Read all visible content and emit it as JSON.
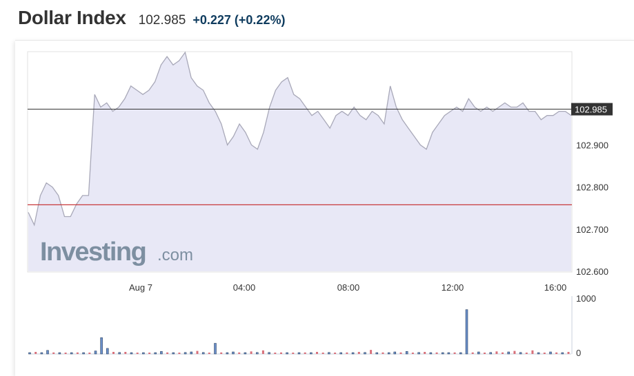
{
  "header": {
    "title": "Dollar Index",
    "price": "102.985",
    "change": "+0.227 (+0.22%)"
  },
  "watermark": {
    "main": "Investing",
    "suffix": ".com"
  },
  "colors": {
    "area_fill": "#e8e8f6",
    "line": "#a8a8b8",
    "current_line": "#333333",
    "prev_close_line": "#c8383a",
    "vol_up": "#6a8ec8",
    "vol_down": "#d8707a"
  },
  "chart_data": [
    {
      "type": "area",
      "x_ticks": [
        "Aug 7",
        "04:00",
        "08:00",
        "12:00",
        "16:00"
      ],
      "y_ticks": [
        "102.900",
        "102.800",
        "102.700",
        "102.600"
      ],
      "ylim": [
        102.6,
        103.12
      ],
      "current_value": 102.985,
      "current_label": "102.985",
      "previous_close": 102.758,
      "values": [
        102.74,
        102.71,
        102.78,
        102.81,
        102.8,
        102.78,
        102.73,
        102.73,
        102.76,
        102.78,
        102.78,
        103.02,
        102.99,
        103.0,
        102.98,
        102.99,
        103.01,
        103.04,
        103.03,
        103.02,
        103.03,
        103.05,
        103.09,
        103.11,
        103.09,
        103.1,
        103.12,
        103.06,
        103.04,
        103.03,
        103.0,
        102.98,
        102.95,
        102.9,
        102.92,
        102.95,
        102.93,
        102.9,
        102.89,
        102.93,
        102.99,
        103.03,
        103.05,
        103.06,
        103.02,
        103.01,
        102.99,
        102.97,
        102.98,
        102.96,
        102.94,
        102.97,
        102.98,
        102.97,
        102.99,
        102.97,
        102.96,
        102.98,
        102.97,
        102.95,
        103.04,
        102.99,
        102.96,
        102.94,
        102.92,
        102.9,
        102.89,
        102.93,
        102.95,
        102.97,
        102.98,
        102.99,
        102.98,
        103.01,
        102.99,
        102.98,
        102.99,
        102.98,
        102.99,
        103.0,
        102.99,
        102.99,
        103.0,
        102.98,
        102.98,
        102.96,
        102.97,
        102.97,
        102.98,
        102.98,
        102.97
      ],
      "volume_ticks": [
        "1000",
        "0"
      ],
      "volume_max": 1000,
      "volume": [
        20,
        40,
        10,
        70,
        30,
        20,
        10,
        20,
        30,
        20,
        25,
        60,
        320,
        110,
        40,
        30,
        40,
        20,
        10,
        15,
        25,
        20,
        50,
        30,
        20,
        25,
        30,
        40,
        60,
        30,
        20,
        210,
        30,
        25,
        40,
        30,
        20,
        50,
        30,
        70,
        30,
        20,
        30,
        25,
        20,
        15,
        30,
        20,
        40,
        20,
        30,
        25,
        20,
        30,
        25,
        40,
        30,
        80,
        20,
        30,
        25,
        40,
        30,
        50,
        20,
        30,
        40,
        20,
        30,
        25,
        20,
        30,
        20,
        870,
        30,
        40,
        20,
        30,
        50,
        30,
        40,
        60,
        30,
        20,
        70,
        25,
        20,
        40,
        30,
        20,
        40
      ],
      "volume_up": [
        1,
        0,
        1,
        1,
        0,
        1,
        0,
        1,
        0,
        1,
        0,
        1,
        1,
        1,
        0,
        1,
        0,
        1,
        0,
        1,
        0,
        1,
        1,
        0,
        1,
        0,
        1,
        1,
        0,
        1,
        0,
        1,
        0,
        1,
        1,
        0,
        1,
        0,
        1,
        0,
        1,
        0,
        0,
        1,
        0,
        1,
        0,
        1,
        0,
        0,
        1,
        0,
        1,
        0,
        1,
        0,
        1,
        0,
        1,
        0,
        1,
        1,
        0,
        1,
        0,
        1,
        0,
        1,
        0,
        1,
        1,
        0,
        1,
        1,
        0,
        1,
        0,
        1,
        0,
        0,
        1,
        0,
        1,
        0,
        0,
        1,
        0,
        1,
        0,
        1,
        0
      ]
    }
  ]
}
